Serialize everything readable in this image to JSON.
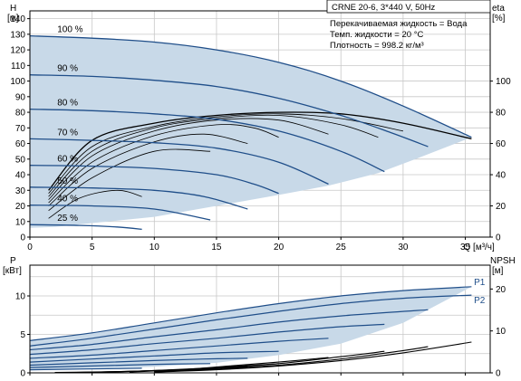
{
  "chart_data": [
    {
      "type": "line",
      "title": "CRNE 20-6, 3*440 V, 50Hz",
      "info": [
        "Перекачиваемая жидкость = Вода",
        "Темп. жидкости = 20 °C",
        "Плотность = 998.2 кг/м³"
      ],
      "xlabel": "Q [м³/ч]",
      "ylabel": "H",
      "ylabel_unit": "[м]",
      "y2label": "eta",
      "y2label_unit": "[%]",
      "xlim": [
        0,
        37
      ],
      "ylim": [
        0,
        145
      ],
      "x_ticks": [
        "0",
        "5",
        "10",
        "15",
        "20",
        "25",
        "30",
        "35"
      ],
      "y_ticks": [
        "0",
        "10",
        "20",
        "30",
        "40",
        "50",
        "60",
        "70",
        "80",
        "90",
        "100",
        "110",
        "120",
        "130",
        "140"
      ],
      "eta_ticks": [
        "0",
        "20",
        "40",
        "60",
        "80",
        "100"
      ],
      "grid": true,
      "envelope": {
        "upper": [
          [
            0,
            129
          ],
          [
            5,
            127.5
          ],
          [
            10,
            125
          ],
          [
            15,
            120
          ],
          [
            20,
            112
          ],
          [
            25,
            100
          ],
          [
            30,
            84
          ],
          [
            35.5,
            64
          ]
        ],
        "lower": [
          [
            35.5,
            64
          ],
          [
            31,
            50
          ],
          [
            28,
            41
          ],
          [
            24,
            33
          ],
          [
            20,
            27
          ],
          [
            15,
            20
          ],
          [
            10,
            13
          ],
          [
            5,
            9
          ],
          [
            2,
            6.5
          ],
          [
            0,
            6
          ]
        ]
      },
      "series": [
        {
          "name": "100 %",
          "points": [
            [
              0,
              129
            ],
            [
              5,
              127.5
            ],
            [
              10,
              125
            ],
            [
              15,
              120
            ],
            [
              20,
              112
            ],
            [
              25,
              100
            ],
            [
              30,
              84
            ],
            [
              35.5,
              64
            ]
          ]
        },
        {
          "name": "90 %",
          "points": [
            [
              0,
              104
            ],
            [
              5,
              103
            ],
            [
              10,
              100.5
            ],
            [
              15,
              96.5
            ],
            [
              20,
              89
            ],
            [
              25,
              78
            ],
            [
              29,
              67
            ],
            [
              32,
              58
            ]
          ]
        },
        {
          "name": "80 %",
          "points": [
            [
              0,
              82
            ],
            [
              5,
              81
            ],
            [
              10,
              79
            ],
            [
              15,
              75.5
            ],
            [
              20,
              68
            ],
            [
              25,
              55
            ],
            [
              28.5,
              42
            ]
          ]
        },
        {
          "name": "70 %",
          "points": [
            [
              0,
              63
            ],
            [
              5,
              62
            ],
            [
              10,
              60.5
            ],
            [
              15,
              57
            ],
            [
              20,
              48
            ],
            [
              24,
              34
            ]
          ]
        },
        {
          "name": "60 %",
          "points": [
            [
              0,
              46
            ],
            [
              5,
              45.5
            ],
            [
              10,
              44
            ],
            [
              15,
              40
            ],
            [
              18,
              34
            ],
            [
              20,
              28
            ]
          ]
        },
        {
          "name": "50 %",
          "points": [
            [
              0,
              32
            ],
            [
              5,
              31.5
            ],
            [
              10,
              30
            ],
            [
              14,
              26
            ],
            [
              17.5,
              18
            ]
          ]
        },
        {
          "name": "40 %",
          "points": [
            [
              0,
              20.5
            ],
            [
              5,
              20
            ],
            [
              10,
              18
            ],
            [
              14.5,
              11
            ]
          ]
        },
        {
          "name": "25 %",
          "points": [
            [
              0,
              8
            ],
            [
              4,
              7.5
            ],
            [
              7,
              6.5
            ],
            [
              9,
              5
            ]
          ]
        }
      ],
      "eta_curves": [
        [
          [
            1.5,
            30
          ],
          [
            5,
            62
          ],
          [
            10,
            73
          ],
          [
            15,
            78
          ],
          [
            20,
            80
          ],
          [
            25,
            79
          ],
          [
            30,
            73
          ],
          [
            35.5,
            63
          ]
        ],
        [
          [
            1.5,
            28
          ],
          [
            5,
            58
          ],
          [
            10,
            71
          ],
          [
            15,
            77
          ],
          [
            20,
            79
          ],
          [
            25,
            76
          ],
          [
            30,
            68
          ]
        ],
        [
          [
            1.5,
            26
          ],
          [
            5,
            55
          ],
          [
            10,
            70
          ],
          [
            15,
            76
          ],
          [
            20,
            78
          ],
          [
            25,
            72
          ],
          [
            28,
            64
          ]
        ],
        [
          [
            1.5,
            24
          ],
          [
            5,
            52
          ],
          [
            10,
            68
          ],
          [
            15,
            75
          ],
          [
            20,
            75
          ],
          [
            24,
            66
          ]
        ],
        [
          [
            1.5,
            22
          ],
          [
            5,
            48
          ],
          [
            10,
            65
          ],
          [
            15,
            72
          ],
          [
            18,
            70
          ],
          [
            20,
            64
          ]
        ],
        [
          [
            1.5,
            20
          ],
          [
            5,
            44
          ],
          [
            10,
            61
          ],
          [
            14,
            66
          ],
          [
            17.5,
            60
          ]
        ],
        [
          [
            1.5,
            17
          ],
          [
            5,
            38
          ],
          [
            10,
            55
          ],
          [
            14.5,
            55
          ]
        ],
        [
          [
            1.5,
            12
          ],
          [
            4,
            25
          ],
          [
            7,
            30
          ],
          [
            9,
            26
          ]
        ]
      ]
    },
    {
      "type": "line",
      "xlim": [
        0,
        37
      ],
      "ylabel": "P",
      "ylabel_unit": "[кВт]",
      "y2label": "NPSH",
      "y2label_unit": "[м]",
      "ylim": [
        0,
        14
      ],
      "y_ticks": [
        "0",
        "5",
        "10"
      ],
      "npsh_ticks": [
        "0",
        "10",
        "20"
      ],
      "grid": true,
      "envelope": {
        "upper": [
          [
            0,
            4.2
          ],
          [
            5,
            5.2
          ],
          [
            10,
            6.5
          ],
          [
            15,
            7.8
          ],
          [
            20,
            9.0
          ],
          [
            25,
            10.0
          ],
          [
            30,
            10.7
          ],
          [
            35.5,
            11.2
          ]
        ],
        "lower": [
          [
            35.5,
            11.2
          ],
          [
            30,
            6.5
          ],
          [
            25,
            3.8
          ],
          [
            20,
            2.3
          ],
          [
            15,
            1.3
          ],
          [
            10,
            0.8
          ],
          [
            5,
            0.5
          ],
          [
            0,
            0.4
          ]
        ]
      },
      "series": [
        {
          "name": "P1",
          "points": [
            [
              0,
              4.2
            ],
            [
              5,
              5.2
            ],
            [
              10,
              6.5
            ],
            [
              15,
              7.8
            ],
            [
              20,
              9.0
            ],
            [
              25,
              10.0
            ],
            [
              30,
              10.7
            ],
            [
              35.5,
              11.2
            ]
          ]
        },
        {
          "name": "P2",
          "points": [
            [
              0,
              3.5
            ],
            [
              5,
              4.5
            ],
            [
              10,
              5.7
            ],
            [
              15,
              6.9
            ],
            [
              20,
              8.0
            ],
            [
              25,
              9.0
            ],
            [
              30,
              9.7
            ],
            [
              35.5,
              10.1
            ]
          ]
        },
        {
          "name": "",
          "points": [
            [
              0,
              3.0
            ],
            [
              5,
              3.7
            ],
            [
              10,
              4.7
            ],
            [
              15,
              5.6
            ],
            [
              20,
              6.6
            ],
            [
              25,
              7.4
            ],
            [
              32,
              8.2
            ]
          ]
        },
        {
          "name": "",
          "points": [
            [
              0,
              2.4
            ],
            [
              5,
              3.0
            ],
            [
              10,
              3.8
            ],
            [
              15,
              4.5
            ],
            [
              20,
              5.3
            ],
            [
              25,
              6.0
            ],
            [
              28.5,
              6.3
            ]
          ]
        },
        {
          "name": "",
          "points": [
            [
              0,
              1.9
            ],
            [
              5,
              2.3
            ],
            [
              10,
              2.9
            ],
            [
              15,
              3.5
            ],
            [
              20,
              4.1
            ],
            [
              24,
              4.5
            ]
          ]
        },
        {
          "name": "",
          "points": [
            [
              0,
              1.4
            ],
            [
              5,
              1.8
            ],
            [
              10,
              2.2
            ],
            [
              15,
              2.6
            ],
            [
              20,
              2.8
            ]
          ]
        },
        {
          "name": "",
          "points": [
            [
              0,
              1.0
            ],
            [
              5,
              1.3
            ],
            [
              10,
              1.6
            ],
            [
              14,
              1.8
            ],
            [
              17.5,
              1.9
            ]
          ]
        },
        {
          "name": "",
          "points": [
            [
              0,
              0.7
            ],
            [
              5,
              0.9
            ],
            [
              10,
              1.1
            ],
            [
              14.5,
              1.2
            ]
          ]
        },
        {
          "name": "",
          "points": [
            [
              0,
              0.4
            ],
            [
              4,
              0.5
            ],
            [
              7,
              0.55
            ],
            [
              9,
              0.6
            ]
          ]
        }
      ],
      "npsh_curves": [
        [
          [
            10,
            0.1
          ],
          [
            15,
            0.4
          ],
          [
            20,
            0.9
          ],
          [
            25,
            1.6
          ],
          [
            30,
            2.6
          ],
          [
            35.5,
            4.0
          ]
        ],
        [
          [
            10,
            0.1
          ],
          [
            15,
            0.5
          ],
          [
            20,
            1.0
          ],
          [
            25,
            1.8
          ],
          [
            30,
            2.9
          ],
          [
            32,
            3.4
          ]
        ],
        [
          [
            10,
            0.2
          ],
          [
            15,
            0.6
          ],
          [
            20,
            1.2
          ],
          [
            25,
            2.1
          ],
          [
            28.5,
            2.8
          ]
        ],
        [
          [
            8,
            0.1
          ],
          [
            12,
            0.4
          ],
          [
            16,
            0.9
          ],
          [
            20,
            1.4
          ],
          [
            24,
            2.0
          ]
        ],
        [
          [
            6,
            0.1
          ],
          [
            10,
            0.3
          ],
          [
            14,
            0.6
          ],
          [
            18,
            1.0
          ],
          [
            20,
            1.2
          ]
        ],
        [
          [
            4,
            0.05
          ],
          [
            8,
            0.2
          ],
          [
            12,
            0.4
          ],
          [
            17.5,
            0.8
          ]
        ],
        [
          [
            3,
            0.05
          ],
          [
            7,
            0.15
          ],
          [
            11,
            0.35
          ],
          [
            14.5,
            0.5
          ]
        ],
        [
          [
            2,
            0.05
          ],
          [
            5,
            0.1
          ],
          [
            9,
            0.2
          ]
        ]
      ]
    }
  ],
  "colors": {
    "envelope_fill": "#c8d9e8",
    "curve_blue": "#1f4e89",
    "grid": "#c8c8c8",
    "black": "#000000"
  }
}
